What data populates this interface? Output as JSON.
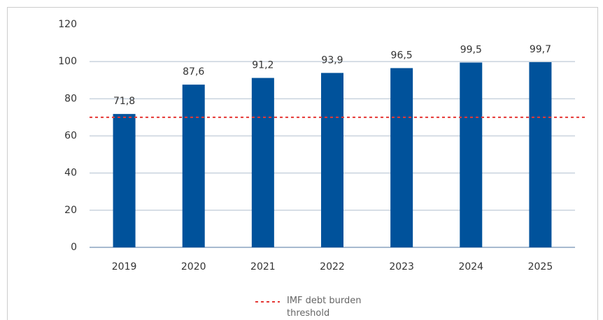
{
  "chart_data": {
    "type": "bar",
    "categories": [
      "2019",
      "2020",
      "2021",
      "2022",
      "2023",
      "2024",
      "2025"
    ],
    "values": [
      71.8,
      87.6,
      91.2,
      93.9,
      96.5,
      99.5,
      99.7
    ],
    "value_labels": [
      "71,8",
      "87,6",
      "91,2",
      "93,9",
      "96,5",
      "99,5",
      "99,7"
    ],
    "color": "#00529b",
    "ylim": [
      0,
      120
    ],
    "yticks": [
      0,
      20,
      40,
      60,
      80,
      100,
      120
    ],
    "grid": true,
    "threshold": {
      "value": 70,
      "label": "IMF debt burden threshold",
      "color": "#e53935"
    },
    "legend": "bottom"
  }
}
